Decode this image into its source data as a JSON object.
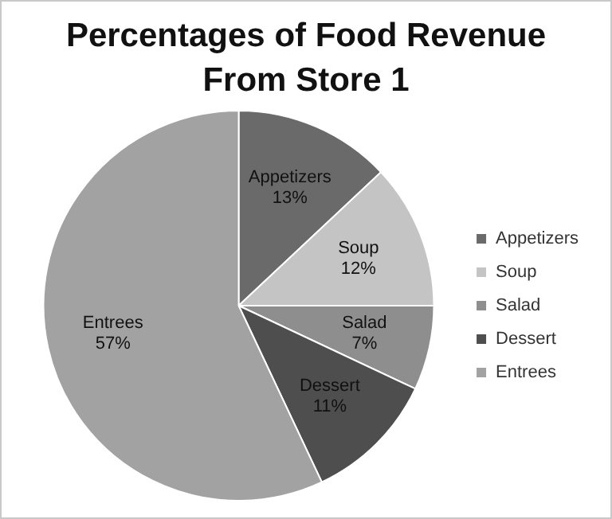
{
  "chart_data": {
    "type": "pie",
    "title": "Percentages of Food Revenue From Store 1",
    "categories": [
      "Appetizers",
      "Soup",
      "Salad",
      "Dessert",
      "Entrees"
    ],
    "values": [
      13,
      12,
      7,
      11,
      57
    ],
    "value_labels": [
      "13%",
      "12%",
      "7%",
      "11%",
      "57%"
    ],
    "colors": [
      "#6a6a6a",
      "#c4c4c4",
      "#8e8e8e",
      "#4e4e4e",
      "#a2a2a2"
    ],
    "legend": "right"
  }
}
